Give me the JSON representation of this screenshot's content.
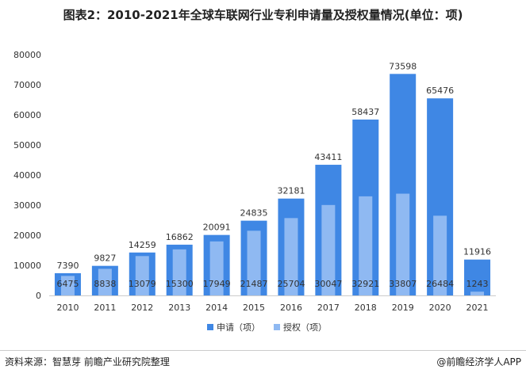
{
  "title": "图表2：2010-2021年全球车联网行业专利申请量及授权量情况(单位：项)",
  "source": "资料来源：智慧芽 前瞻产业研究院整理",
  "credit": "@前瞻经济学人APP",
  "colors": {
    "apply": "#3f87e4",
    "grant": "#8fb9f2"
  },
  "chart_data": {
    "type": "bar",
    "title": "2010-2021年全球车联网行业专利申请量及授权量情况(单位：项)",
    "categories": [
      "2010",
      "2011",
      "2012",
      "2013",
      "2014",
      "2015",
      "2016",
      "2017",
      "2018",
      "2019",
      "2020",
      "2021"
    ],
    "series": [
      {
        "name": "申请（项）",
        "values": [
          7390,
          9827,
          14259,
          16862,
          20091,
          24835,
          32181,
          43411,
          58437,
          73598,
          65476,
          11916
        ]
      },
      {
        "name": "授权（项）",
        "values": [
          6475,
          8838,
          13079,
          15300,
          17949,
          21487,
          25704,
          30047,
          32921,
          33807,
          26484,
          1243
        ]
      }
    ],
    "ylim": [
      0,
      80000
    ],
    "yticks": [
      0,
      10000,
      20000,
      30000,
      40000,
      50000,
      60000,
      70000,
      80000
    ],
    "legend": "bottom",
    "grid": false
  }
}
